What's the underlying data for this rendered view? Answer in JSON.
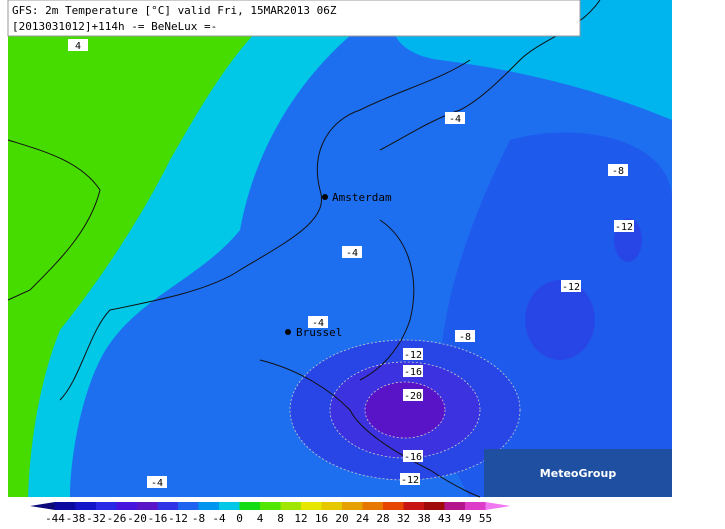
{
  "header": {
    "line1": "GFS: 2m Temperature [°C] valid Fri, 15MAR2013 06Z",
    "line2": "[2013031012]+114h -= BeNeLux =-"
  },
  "contour_labels": [
    4,
    -4,
    -8,
    -12,
    -4,
    -12,
    -4,
    -8,
    -12,
    -16,
    -20,
    -16,
    -12,
    -4
  ],
  "cities": [
    "Amsterdam",
    "Brussel"
  ],
  "colorbar": {
    "ticks": [
      -44,
      -38,
      -32,
      -26,
      -20,
      -16,
      -12,
      -8,
      -4,
      0,
      4,
      8,
      12,
      16,
      20,
      24,
      28,
      32,
      38,
      43,
      49,
      55
    ],
    "colors": [
      "#0a0a78",
      "#0a0aa0",
      "#1414c8",
      "#2828e6",
      "#4614dc",
      "#5a14c8",
      "#3232e6",
      "#1e64f0",
      "#0096f0",
      "#00c8e6",
      "#14dc14",
      "#50e600",
      "#a0e600",
      "#e6e600",
      "#e6c800",
      "#e6a000",
      "#e67800",
      "#e64600",
      "#c81414",
      "#a00a0a",
      "#b4148c",
      "#dc3cc8",
      "#f078f0"
    ]
  },
  "logo": "MeteoGroup"
}
